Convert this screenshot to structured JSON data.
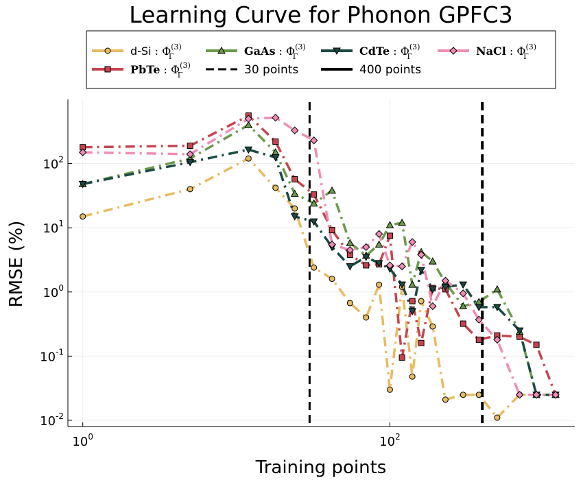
{
  "chart_data": {
    "type": "line",
    "title": "Learning Curve for Phonon GPFC3",
    "xlabel": "Training points",
    "ylabel": "RMSE (%)",
    "x_scale": "log",
    "y_scale": "log",
    "xlim": [
      0.8,
      1600
    ],
    "ylim": [
      0.008,
      1000
    ],
    "x_ticks": [
      {
        "mant": "10",
        "exp": "0"
      },
      {
        "mant": "10",
        "exp": "2"
      }
    ],
    "y_ticks": [
      {
        "mant": "10",
        "exp": "-2"
      },
      {
        "mant": "10",
        "exp": "-1"
      },
      {
        "mant": "10",
        "exp": "0"
      },
      {
        "mant": "10",
        "exp": "1"
      },
      {
        "mant": "10",
        "exp": "2"
      }
    ],
    "grid": true,
    "legend_position": "top",
    "vlines": [
      {
        "x": 30,
        "label": "30 points",
        "style": "dashed",
        "width": 3
      },
      {
        "x": 400,
        "label": "400 points",
        "style": "dashed",
        "width": 4
      }
    ],
    "series": [
      {
        "name_main": "d-Si",
        "name_phi": "Φ",
        "name_sub": "Γ",
        "name_sup": "(3)",
        "bold_name": false,
        "color": "#E8BB60",
        "marker": "circle",
        "dash": "14,7,3,7",
        "x": [
          1,
          5,
          12,
          18,
          24,
          32,
          42,
          55,
          70,
          85,
          100,
          120,
          140,
          160,
          190,
          230,
          300,
          380,
          500,
          700,
          900,
          1200
        ],
        "y": [
          15,
          40,
          120,
          42,
          20,
          2.4,
          1.6,
          0.67,
          0.4,
          1.3,
          0.03,
          1.2,
          0.048,
          0.72,
          0.29,
          0.021,
          0.025,
          0.025,
          0.011,
          0.025,
          0.025,
          0.025
        ]
      },
      {
        "name_main": "PbTe",
        "name_phi": "Φ",
        "name_sub": "Γ",
        "name_sup": "(3)",
        "bold_name": true,
        "color": "#C5454F",
        "marker": "square",
        "dash": "14,7,3,7",
        "x": [
          1,
          5,
          12,
          18,
          24,
          32,
          42,
          55,
          70,
          85,
          100,
          120,
          140,
          160,
          190,
          230,
          300,
          380,
          500,
          700,
          900,
          1200
        ],
        "y": [
          180,
          190,
          560,
          220,
          57,
          33,
          9.2,
          3.8,
          2.6,
          2.7,
          7.5,
          0.095,
          0.72,
          0.16,
          1.15,
          1.1,
          0.32,
          0.18,
          0.21,
          0.2,
          0.15,
          0.025
        ]
      },
      {
        "name_main": "GaAs",
        "name_phi": "Φ",
        "name_sub": "Γ",
        "name_sup": "(3)",
        "bold_name": true,
        "color": "#6A9A4A",
        "marker": "triangle-up",
        "dash": "14,7,3,7",
        "x": [
          1,
          5,
          12,
          18,
          24,
          32,
          42,
          55,
          70,
          85,
          100,
          120,
          140,
          160,
          190,
          230,
          300,
          380,
          500,
          700,
          900,
          1200
        ],
        "y": [
          48,
          120,
          400,
          150,
          34,
          24,
          38,
          5.8,
          3.7,
          5.5,
          11,
          12,
          1.3,
          4.2,
          3.0,
          1.4,
          0.6,
          0.7,
          1.1,
          0.24,
          0.025,
          0.025
        ]
      },
      {
        "name_main": "CdTe",
        "name_phi": "Φ",
        "name_sub": "Γ",
        "name_sup": "(3)",
        "bold_name": true,
        "color": "#1B4A44",
        "marker": "triangle-down",
        "dash": "14,7,3,7",
        "x": [
          1,
          5,
          12,
          18,
          24,
          32,
          42,
          55,
          70,
          85,
          100,
          120,
          140,
          160,
          190,
          230,
          300,
          380,
          500,
          700,
          900,
          1200
        ],
        "y": [
          48,
          105,
          165,
          125,
          15,
          12.5,
          5.0,
          2.5,
          3.5,
          2.8,
          2.3,
          1.3,
          0.5,
          2.2,
          1.1,
          1.2,
          1.3,
          0.58,
          0.58,
          0.25,
          0.025,
          0.025
        ]
      },
      {
        "name_main": "NaCl",
        "name_phi": "Φ",
        "name_sub": "Γ",
        "name_sup": "(3)",
        "bold_name": true,
        "color": "#F08CB5",
        "marker": "diamond",
        "dash": "14,7,3,7",
        "x": [
          1,
          5,
          12,
          18,
          24,
          32,
          42,
          55,
          70,
          85,
          100,
          120,
          140,
          160,
          190,
          230,
          300,
          380,
          500,
          700,
          900,
          1200
        ],
        "y": [
          150,
          140,
          500,
          520,
          330,
          230,
          5.5,
          4.5,
          5.0,
          8.0,
          2.6,
          2.5,
          6.0,
          3.8,
          0.6,
          1.5,
          0.95,
          0.37,
          0.18,
          0.025,
          0.025,
          0.025
        ]
      }
    ]
  }
}
